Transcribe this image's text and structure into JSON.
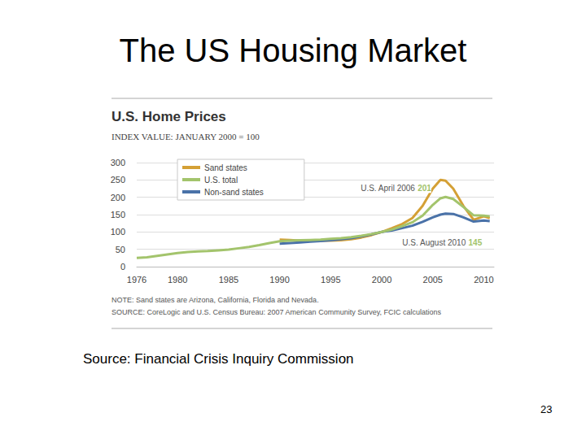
{
  "slide": {
    "title": "The US Housing Market",
    "source": "Source: Financial Crisis Inquiry Commission",
    "page_number": 23
  },
  "chart_data": {
    "type": "line",
    "title": "U.S. Home Prices",
    "subtitle": "INDEX VALUE: JANUARY 2000 = 100",
    "note": "NOTE: Sand states are Arizona, California, Florida and Nevada.",
    "source": "SOURCE: CoreLogic and U.S. Census Bureau: 2007 American Community Survey, FCIC calculations",
    "x": [
      1976,
      1977,
      1978,
      1979,
      1980,
      1981,
      1982,
      1983,
      1984,
      1985,
      1986,
      1987,
      1988,
      1989,
      1990,
      1991,
      1992,
      1993,
      1994,
      1995,
      1996,
      1997,
      1998,
      1999,
      2000,
      2001,
      2002,
      2003,
      2004,
      2005,
      2005.75,
      2006.25,
      2007,
      2008,
      2009,
      2010,
      2010.58
    ],
    "series": [
      {
        "name": "Sand states",
        "color": "#d4a035",
        "values": [
          null,
          null,
          null,
          null,
          null,
          null,
          null,
          null,
          null,
          null,
          null,
          null,
          null,
          null,
          78,
          77,
          75,
          74,
          75,
          75,
          76,
          79,
          84,
          91,
          100,
          111,
          123,
          140,
          175,
          225,
          250,
          248,
          225,
          175,
          135,
          145,
          140
        ]
      },
      {
        "name": "U.S. total",
        "color": "#a3c46c",
        "values": [
          25,
          27,
          31,
          35,
          39,
          42,
          44,
          45,
          47,
          49,
          53,
          57,
          62,
          68,
          73,
          75,
          76,
          77,
          78,
          80,
          82,
          85,
          89,
          94,
          100,
          107,
          117,
          128,
          147,
          178,
          197,
          201,
          195,
          172,
          148,
          147,
          145
        ]
      },
      {
        "name": "Non-sand states",
        "color": "#4a72a8",
        "values": [
          null,
          null,
          null,
          null,
          null,
          null,
          null,
          null,
          null,
          null,
          null,
          null,
          null,
          null,
          66,
          68,
          70,
          72,
          74,
          76,
          79,
          82,
          87,
          93,
          100,
          104,
          111,
          118,
          129,
          142,
          150,
          153,
          152,
          142,
          130,
          133,
          131
        ]
      }
    ],
    "annotations": [
      {
        "text": "U.S. April 2006",
        "x": 2006.25,
        "value": 201
      },
      {
        "text": "U.S. August 2010",
        "x": 2010.58,
        "value": 145
      }
    ],
    "xlim": [
      1976,
      2011
    ],
    "xticks": [
      1976,
      1980,
      1985,
      1990,
      1995,
      2000,
      2005,
      2010
    ],
    "ylim": [
      0,
      300
    ],
    "yticks": [
      0,
      50,
      100,
      150,
      200,
      250,
      300
    ],
    "grid": true,
    "legend": "upper left"
  }
}
